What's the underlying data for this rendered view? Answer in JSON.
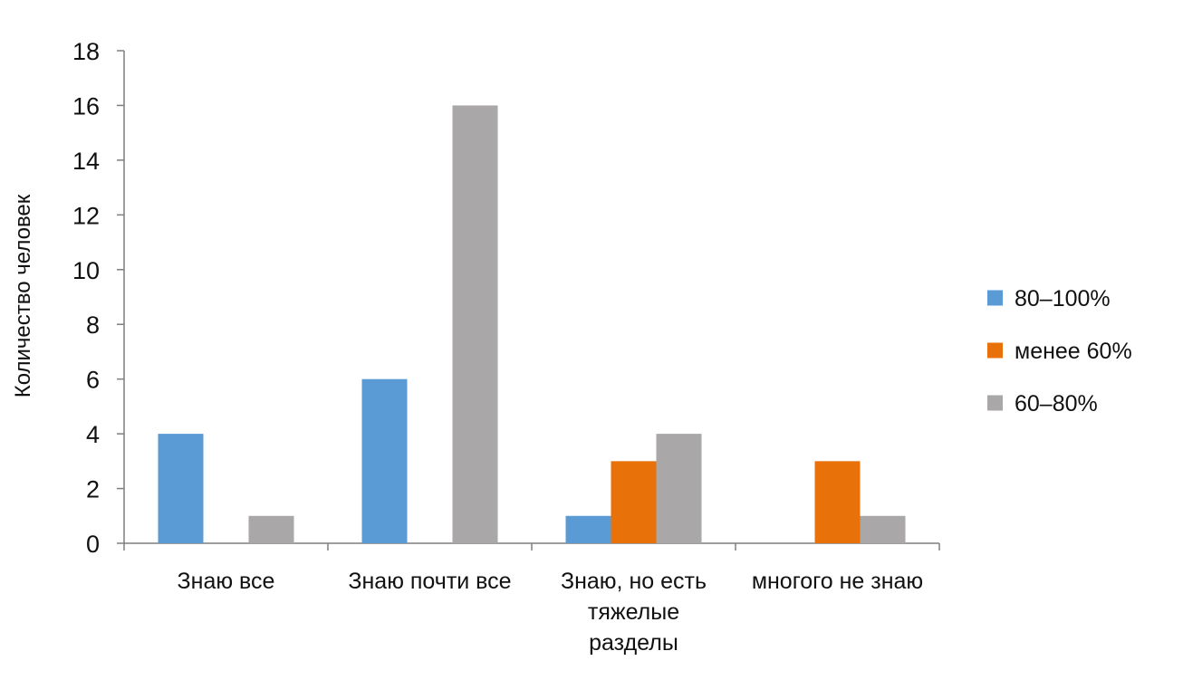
{
  "chart_data": {
    "type": "bar",
    "title": "",
    "xlabel": "",
    "ylabel": "Количество человек",
    "ylim": [
      0,
      18
    ],
    "yticks": [
      0,
      2,
      4,
      6,
      8,
      10,
      12,
      14,
      16,
      18
    ],
    "grid": false,
    "legend_position": "right",
    "categories": [
      [
        "Знаю все"
      ],
      [
        "Знаю почти все"
      ],
      [
        "Знаю, но есть",
        "тяжелые",
        "разделы"
      ],
      [
        "многого не знаю"
      ]
    ],
    "series": [
      {
        "name": "80–100%",
        "color": "#5b9bd5",
        "values": [
          4,
          6,
          1,
          0
        ]
      },
      {
        "name": "менее 60%",
        "color": "#e8710a",
        "values": [
          0,
          0,
          3,
          3
        ]
      },
      {
        "name": "60–80%",
        "color": "#a9a7a7",
        "values": [
          1,
          16,
          4,
          1
        ]
      }
    ]
  }
}
